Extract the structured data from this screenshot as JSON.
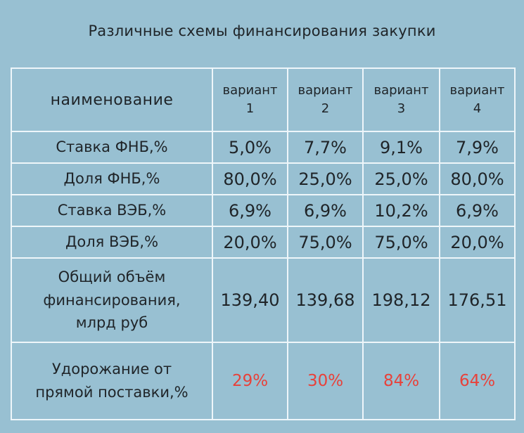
{
  "title": "Различные схемы финансирования закупки",
  "table": {
    "header": {
      "name": "наименование",
      "variants": [
        [
          "вариант",
          "1"
        ],
        [
          "вариант",
          "2"
        ],
        [
          "вариант",
          "3"
        ],
        [
          "вариант",
          "4"
        ]
      ]
    },
    "rows": [
      {
        "label": [
          "Ставка ФНБ,%"
        ],
        "values": [
          "5,0%",
          "7,7%",
          "9,1%",
          "7,9%"
        ]
      },
      {
        "label": [
          "Доля ФНБ,%"
        ],
        "values": [
          "80,0%",
          "25,0%",
          "25,0%",
          "80,0%"
        ]
      },
      {
        "label": [
          "Ставка ВЭБ,%"
        ],
        "values": [
          "6,9%",
          "6,9%",
          "10,2%",
          "6,9%"
        ]
      },
      {
        "label": [
          "Доля ВЭБ,%"
        ],
        "values": [
          "20,0%",
          "75,0%",
          "75,0%",
          "20,0%"
        ]
      },
      {
        "label": [
          "Общий объём",
          "финансирования,",
          "млрд руб"
        ],
        "values": [
          "139,40",
          "139,68",
          "198,12",
          "176,51"
        ]
      },
      {
        "label": [
          "Удорожание от",
          "прямой поставки,%"
        ],
        "values": [
          "29%",
          "30%",
          "84%",
          "64%"
        ]
      }
    ]
  },
  "colors": {
    "background": "#98c0d2",
    "grid_lines": "#eef6fa",
    "highlight": "#e8413a",
    "text": "#1f2428"
  }
}
